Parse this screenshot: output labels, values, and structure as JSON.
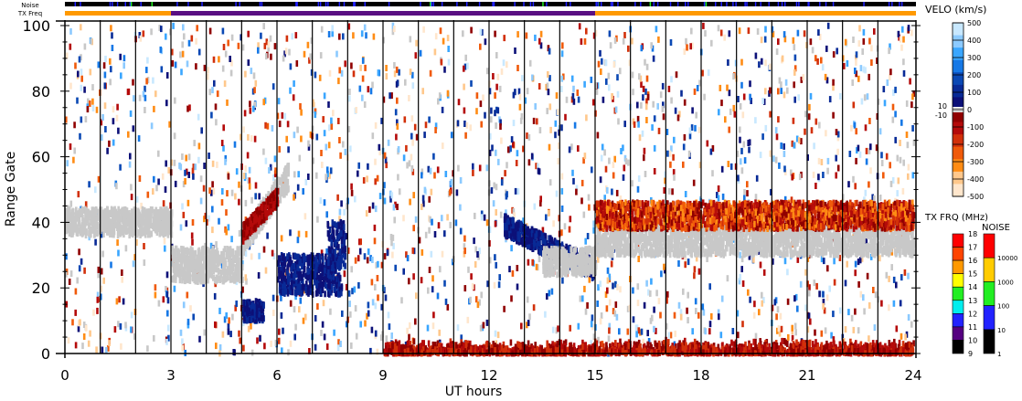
{
  "chart_data": {
    "type": "heatmap",
    "xlabel": "UT hours",
    "ylabel": "Range Gate",
    "xlim": [
      0,
      24
    ],
    "ylim": [
      0,
      100
    ],
    "xticks": [
      "0",
      "3",
      "6",
      "9",
      "12",
      "15",
      "18",
      "21",
      "24"
    ],
    "yticks": [
      "0",
      "20",
      "40",
      "60",
      "80",
      "100"
    ],
    "hour_lines": [
      1,
      2,
      3,
      4,
      5,
      6,
      7,
      8,
      9,
      10,
      11,
      12,
      13,
      14,
      15,
      16,
      17,
      18,
      19,
      20,
      21,
      22,
      23
    ],
    "top_bars": {
      "noise_label": "Noise",
      "txfreq_label": "TX Freq",
      "txfreq_segments": [
        {
          "start": 0,
          "end": 3,
          "mhz": 15,
          "color": "#ff9900"
        },
        {
          "start": 3,
          "end": 15,
          "mhz": 10,
          "color": "#5a0f82"
        },
        {
          "start": 15,
          "end": 24,
          "mhz": 15,
          "color": "#ff9900"
        }
      ]
    },
    "velocity_colorbar": {
      "title": "VELO (km/s)",
      "ticks": [
        "500",
        "400",
        "300",
        "200",
        "100",
        "0",
        "-100",
        "-200",
        "-300",
        "-400",
        "-500"
      ],
      "gs_labels": [
        "10",
        "-10"
      ],
      "colors": [
        "#c8e8ff",
        "#8ccaff",
        "#3aa6ff",
        "#1678e6",
        "#0a48b4",
        "#082a96",
        "#0c1078",
        "#900000",
        "#b40a0a",
        "#d2300a",
        "#f05a0a",
        "#ff8c14",
        "#ffc88c",
        "#ffe6cc"
      ],
      "ground_scatter_color": "#c8c8c8"
    },
    "txfreq_colorbar": {
      "title": "TX FRQ (MHz)",
      "ticks": [
        "18",
        "17",
        "16",
        "15",
        "14",
        "13",
        "12",
        "11",
        "10",
        "9"
      ],
      "colors": [
        "#ff0000",
        "#ff4400",
        "#ff9900",
        "#ffff00",
        "#22ee22",
        "#00eeee",
        "#2222ff",
        "#550080",
        "#000000"
      ]
    },
    "noise_colorbar": {
      "title": "NOISE",
      "ticks": [
        "10000",
        "1000",
        "100",
        "10",
        "1"
      ],
      "colors": [
        "#ff0000",
        "#ffcc00",
        "#22ee22",
        "#2222ff",
        "#000000"
      ]
    },
    "echo_regions": [
      {
        "t0": 0.0,
        "t1": 3.0,
        "g0": 36,
        "g1": 44,
        "kind": "ground"
      },
      {
        "t0": 3.0,
        "t1": 5.0,
        "g0": 22,
        "g1": 32,
        "kind": "ground"
      },
      {
        "t0": 5.0,
        "t1": 6.3,
        "g0": 30,
        "g1": 55,
        "kind": "ground-rising"
      },
      {
        "t0": 5.0,
        "t1": 6.0,
        "g0": 34,
        "g1": 48,
        "kind": "red-rising"
      },
      {
        "t0": 5.0,
        "t1": 5.6,
        "g0": 10,
        "g1": 16,
        "kind": "blue"
      },
      {
        "t0": 6.0,
        "t1": 7.8,
        "g0": 18,
        "g1": 30,
        "kind": "blue"
      },
      {
        "t0": 7.4,
        "t1": 7.9,
        "g0": 26,
        "g1": 40,
        "kind": "blue"
      },
      {
        "t0": 12.4,
        "t1": 15.0,
        "g0": 25,
        "g1": 42,
        "kind": "blue-falling"
      },
      {
        "t0": 13.5,
        "t1": 15.0,
        "g0": 24,
        "g1": 32,
        "kind": "ground"
      },
      {
        "t0": 15.0,
        "t1": 24.0,
        "g0": 30,
        "g1": 40,
        "kind": "ground"
      },
      {
        "t0": 15.0,
        "t1": 24.0,
        "g0": 38,
        "g1": 46,
        "kind": "red"
      },
      {
        "t0": 9.0,
        "t1": 24.0,
        "g0": 0,
        "g1": 4,
        "kind": "red-bottom"
      }
    ]
  }
}
